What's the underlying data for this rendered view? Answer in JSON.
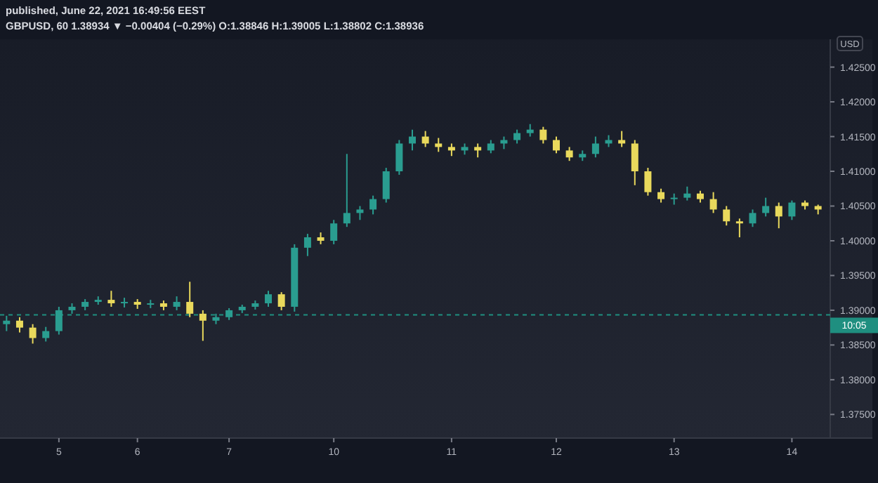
{
  "chart_data": {
    "type": "candlestick",
    "title": "published, June 22, 2021 16:49:56 EEST",
    "subtitle": "GBPUSD, 60 1.38934 ▼ −0.00404 (−0.29%) O:1.38846 H:1.39005 L:1.38802 C:1.38936",
    "ylabel": "USD",
    "categories": [
      null,
      null,
      null,
      null,
      "5",
      null,
      null,
      null,
      null,
      null,
      "6",
      null,
      null,
      null,
      null,
      null,
      null,
      "7",
      null,
      null,
      null,
      null,
      null,
      null,
      null,
      "10",
      null,
      null,
      null,
      null,
      null,
      null,
      null,
      null,
      "11",
      null,
      null,
      null,
      null,
      null,
      null,
      null,
      "12",
      null,
      null,
      null,
      null,
      null,
      null,
      null,
      null,
      "13",
      null,
      null,
      null,
      null,
      null,
      null,
      null,
      null,
      "14",
      null,
      null
    ],
    "ohlc": [
      [
        1.388,
        1.3892,
        1.387,
        1.3885
      ],
      [
        1.3885,
        1.389,
        1.3868,
        1.3875
      ],
      [
        1.3875,
        1.388,
        1.3852,
        1.386
      ],
      [
        1.386,
        1.3876,
        1.3855,
        1.387
      ],
      [
        1.387,
        1.3905,
        1.3865,
        1.39
      ],
      [
        1.39,
        1.391,
        1.3895,
        1.3905
      ],
      [
        1.3905,
        1.3916,
        1.39,
        1.3912
      ],
      [
        1.3912,
        1.392,
        1.3908,
        1.3915
      ],
      [
        1.3915,
        1.3928,
        1.3905,
        1.391
      ],
      [
        1.391,
        1.3918,
        1.3904,
        1.3912
      ],
      [
        1.3912,
        1.3916,
        1.3902,
        1.3908
      ],
      [
        1.3908,
        1.3915,
        1.3903,
        1.391
      ],
      [
        1.391,
        1.3914,
        1.39,
        1.3905
      ],
      [
        1.3905,
        1.392,
        1.39,
        1.3912
      ],
      [
        1.3912,
        1.3941,
        1.389,
        1.3895
      ],
      [
        1.3895,
        1.39,
        1.3856,
        1.3885
      ],
      [
        1.3885,
        1.3895,
        1.388,
        1.389
      ],
      [
        1.389,
        1.3903,
        1.3886,
        1.39
      ],
      [
        1.39,
        1.3908,
        1.3896,
        1.3905
      ],
      [
        1.3905,
        1.3914,
        1.3901,
        1.391
      ],
      [
        1.391,
        1.3928,
        1.3905,
        1.3923
      ],
      [
        1.3923,
        1.3926,
        1.39,
        1.3905
      ],
      [
        1.3905,
        1.3995,
        1.3898,
        1.399
      ],
      [
        1.399,
        1.401,
        1.3978,
        1.4005
      ],
      [
        1.4005,
        1.4012,
        1.3995,
        1.4
      ],
      [
        1.4,
        1.403,
        1.3995,
        1.4025
      ],
      [
        1.4025,
        1.4125,
        1.402,
        1.404
      ],
      [
        1.404,
        1.405,
        1.403,
        1.4045
      ],
      [
        1.4045,
        1.4065,
        1.4038,
        1.406
      ],
      [
        1.406,
        1.4105,
        1.4055,
        1.41
      ],
      [
        1.41,
        1.4145,
        1.4095,
        1.414
      ],
      [
        1.414,
        1.416,
        1.413,
        1.415
      ],
      [
        1.415,
        1.4158,
        1.4135,
        1.414
      ],
      [
        1.414,
        1.4148,
        1.4128,
        1.4135
      ],
      [
        1.4135,
        1.414,
        1.4122,
        1.413
      ],
      [
        1.413,
        1.414,
        1.4124,
        1.4135
      ],
      [
        1.4135,
        1.414,
        1.412,
        1.413
      ],
      [
        1.413,
        1.4145,
        1.4126,
        1.414
      ],
      [
        1.414,
        1.415,
        1.4132,
        1.4145
      ],
      [
        1.4145,
        1.416,
        1.414,
        1.4155
      ],
      [
        1.4155,
        1.4168,
        1.415,
        1.416
      ],
      [
        1.416,
        1.4164,
        1.414,
        1.4145
      ],
      [
        1.4145,
        1.415,
        1.4126,
        1.413
      ],
      [
        1.413,
        1.4135,
        1.4115,
        1.412
      ],
      [
        1.412,
        1.413,
        1.4115,
        1.4125
      ],
      [
        1.4125,
        1.415,
        1.412,
        1.414
      ],
      [
        1.414,
        1.4152,
        1.4135,
        1.4145
      ],
      [
        1.4145,
        1.4158,
        1.4135,
        1.414
      ],
      [
        1.414,
        1.4145,
        1.408,
        1.41
      ],
      [
        1.41,
        1.4105,
        1.4065,
        1.407
      ],
      [
        1.407,
        1.4075,
        1.4055,
        1.406
      ],
      [
        1.406,
        1.4068,
        1.4052,
        1.4062
      ],
      [
        1.4062,
        1.4078,
        1.4058,
        1.4068
      ],
      [
        1.4068,
        1.4072,
        1.4055,
        1.406
      ],
      [
        1.406,
        1.407,
        1.404,
        1.4045
      ],
      [
        1.4045,
        1.405,
        1.4022,
        1.4028
      ],
      [
        1.4028,
        1.4032,
        1.4005,
        1.4025
      ],
      [
        1.4025,
        1.4045,
        1.402,
        1.404
      ],
      [
        1.404,
        1.4062,
        1.4035,
        1.405
      ],
      [
        1.405,
        1.4055,
        1.4018,
        1.4035
      ],
      [
        1.4035,
        1.4058,
        1.403,
        1.4055
      ],
      [
        1.4055,
        1.4058,
        1.4045,
        1.405
      ],
      [
        1.405,
        1.4052,
        1.4038,
        1.4045
      ]
    ],
    "colors": [
      "#2a9d90",
      "#e9d95c",
      "#e9d95c",
      "#2a9d90",
      "#2a9d90",
      "#2a9d90",
      "#2a9d90",
      "#2a9d90",
      "#e9d95c",
      "#2a9d90",
      "#e9d95c",
      "#2a9d90",
      "#e9d95c",
      "#2a9d90",
      "#e9d95c",
      "#e9d95c",
      "#2a9d90",
      "#2a9d90",
      "#2a9d90",
      "#2a9d90",
      "#2a9d90",
      "#e9d95c",
      "#2a9d90",
      "#2a9d90",
      "#e9d95c",
      "#2a9d90",
      "#2a9d90",
      "#2a9d90",
      "#2a9d90",
      "#2a9d90",
      "#2a9d90",
      "#2a9d90",
      "#e9d95c",
      "#e9d95c",
      "#e9d95c",
      "#2a9d90",
      "#e9d95c",
      "#2a9d90",
      "#2a9d90",
      "#2a9d90",
      "#2a9d90",
      "#e9d95c",
      "#e9d95c",
      "#e9d95c",
      "#2a9d90",
      "#2a9d90",
      "#2a9d90",
      "#e9d95c",
      "#e9d95c",
      "#e9d95c",
      "#e9d95c",
      "#2a9d90",
      "#2a9d90",
      "#e9d95c",
      "#e9d95c",
      "#e9d95c",
      "#e9d95c",
      "#2a9d90",
      "#2a9d90",
      "#e9d95c",
      "#2a9d90",
      "#e9d95c",
      "#e9d95c"
    ],
    "annotations": [
      "10:05"
    ],
    "ylim": [
      1.3716,
      1.429
    ],
    "yticks": [
      {
        "value": 1.375,
        "label": "1.37500"
      },
      {
        "value": 1.38,
        "label": "1.38000"
      },
      {
        "value": 1.385,
        "label": "1.38500"
      },
      {
        "value": 1.39,
        "label": "1.39000"
      },
      {
        "value": 1.395,
        "label": "1.39500"
      },
      {
        "value": 1.4,
        "label": "1.40000"
      },
      {
        "value": 1.405,
        "label": "1.40500"
      },
      {
        "value": 1.41,
        "label": "1.41000"
      },
      {
        "value": 1.415,
        "label": "1.41500"
      },
      {
        "value": 1.42,
        "label": "1.42000"
      },
      {
        "value": 1.425,
        "label": "1.42500"
      }
    ],
    "ref_lines": [
      {
        "axis": "y",
        "value": 1.38934,
        "color": "#1f8f80",
        "line_style": "dashed"
      }
    ]
  }
}
